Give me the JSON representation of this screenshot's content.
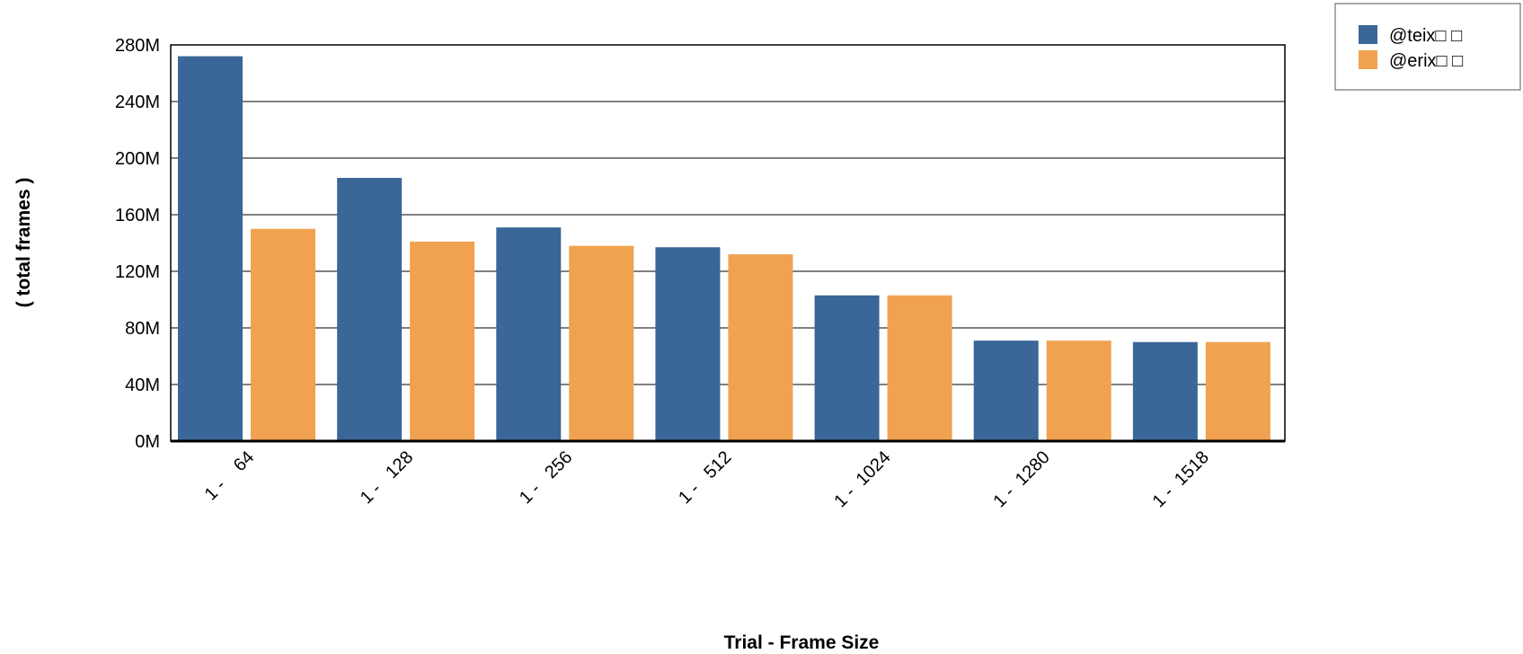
{
  "chart_data": {
    "type": "bar",
    "title": "",
    "xlabel": "Trial - Frame Size",
    "ylabel": "( total frames )",
    "categories": [
      "1 -    64",
      "1 -   128",
      "1 -   256",
      "1 -   512",
      "1 -  1024",
      "1 -  1280",
      "1 -  1518"
    ],
    "series": [
      {
        "name": "@teix□ □",
        "color": "#3a6698",
        "values": [
          272000000,
          186000000,
          151000000,
          137000000,
          103000000,
          71000000,
          70000000
        ]
      },
      {
        "name": "@erix□ □",
        "color": "#f0a250",
        "values": [
          150000000,
          141000000,
          138000000,
          132000000,
          103000000,
          71000000,
          70000000
        ]
      }
    ],
    "ylim": [
      0,
      280000000
    ],
    "yticks": [
      "0M",
      "40M",
      "80M",
      "120M",
      "160M",
      "200M",
      "240M",
      "280M"
    ],
    "grid": true,
    "legend_position": "top-right"
  }
}
